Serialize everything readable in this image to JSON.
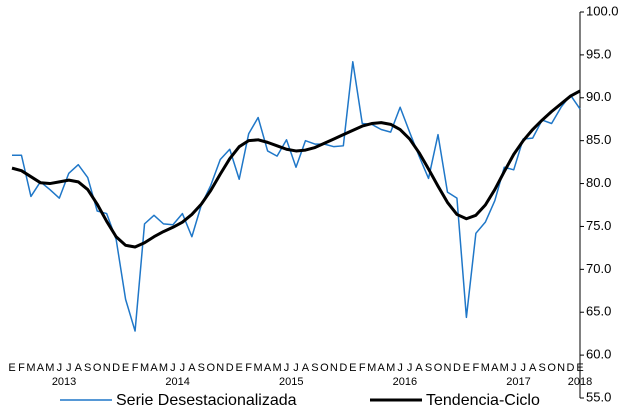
{
  "chart_data": {
    "type": "line",
    "categories": [
      "E",
      "F",
      "M",
      "A",
      "M",
      "J",
      "J",
      "A",
      "S",
      "O",
      "N",
      "D",
      "E",
      "F",
      "M",
      "A",
      "M",
      "J",
      "J",
      "A",
      "S",
      "O",
      "N",
      "D",
      "E",
      "F",
      "M",
      "A",
      "M",
      "J",
      "J",
      "A",
      "S",
      "O",
      "N",
      "D",
      "E",
      "F",
      "M",
      "A",
      "M",
      "J",
      "J",
      "A",
      "S",
      "O",
      "N",
      "D",
      "E",
      "F",
      "M",
      "A",
      "M",
      "J",
      "J",
      "A",
      "S",
      "O",
      "N",
      "D",
      "E"
    ],
    "years": [
      "2013",
      "2014",
      "2015",
      "2016",
      "2017",
      "2018"
    ],
    "series": [
      {
        "name": "Serie Desestacionalizada",
        "color": "#1f77c8",
        "width": 1.5,
        "values": [
          83.3,
          83.3,
          78.5,
          80.2,
          79.3,
          78.3,
          81.2,
          82.2,
          80.7,
          76.8,
          76.5,
          73.5,
          66.5,
          62.8,
          75.3,
          76.3,
          75.3,
          75.2,
          76.5,
          73.8,
          77.5,
          79.8,
          82.8,
          84.0,
          80.5,
          85.8,
          87.7,
          83.8,
          83.2,
          85.1,
          81.9,
          85.0,
          84.6,
          84.6,
          84.3,
          84.4,
          94.2,
          87.0,
          86.9,
          86.3,
          86.0,
          88.9,
          86.0,
          83.2,
          80.6,
          85.7,
          79.0,
          78.3,
          64.4,
          74.2,
          75.5,
          78.0,
          81.9,
          81.6,
          85.2,
          85.3,
          87.4,
          87.0,
          88.9,
          90.3,
          88.7
        ]
      },
      {
        "name": "Tendencia-Ciclo",
        "color": "#000000",
        "width": 3,
        "values": [
          81.8,
          81.5,
          80.8,
          80.1,
          80.0,
          80.2,
          80.4,
          80.2,
          79.3,
          77.6,
          75.6,
          73.8,
          72.8,
          72.6,
          73.1,
          73.8,
          74.4,
          74.9,
          75.5,
          76.4,
          77.6,
          79.2,
          81.1,
          82.9,
          84.3,
          85.0,
          85.1,
          84.8,
          84.4,
          84.0,
          83.8,
          83.9,
          84.2,
          84.7,
          85.2,
          85.7,
          86.2,
          86.7,
          87.0,
          87.1,
          86.9,
          86.3,
          85.2,
          83.6,
          81.7,
          79.7,
          77.8,
          76.4,
          75.9,
          76.3,
          77.5,
          79.3,
          81.4,
          83.4,
          85.0,
          86.3,
          87.4,
          88.4,
          89.3,
          90.2,
          90.8
        ]
      }
    ],
    "ylim": [
      55,
      100
    ],
    "yticks": [
      {
        "value": 55,
        "label": "55.0"
      },
      {
        "value": 60,
        "label": "60.0"
      },
      {
        "value": 65,
        "label": "65.0"
      },
      {
        "value": 70,
        "label": "70.0"
      },
      {
        "value": 75,
        "label": "75.0"
      },
      {
        "value": 80,
        "label": "80.0"
      },
      {
        "value": 85,
        "label": "85.0"
      },
      {
        "value": 90,
        "label": "90.0"
      },
      {
        "value": 95,
        "label": "95.0"
      },
      {
        "value": 100,
        "label": "100.0"
      }
    ],
    "grid": false,
    "legend": "bottom"
  }
}
